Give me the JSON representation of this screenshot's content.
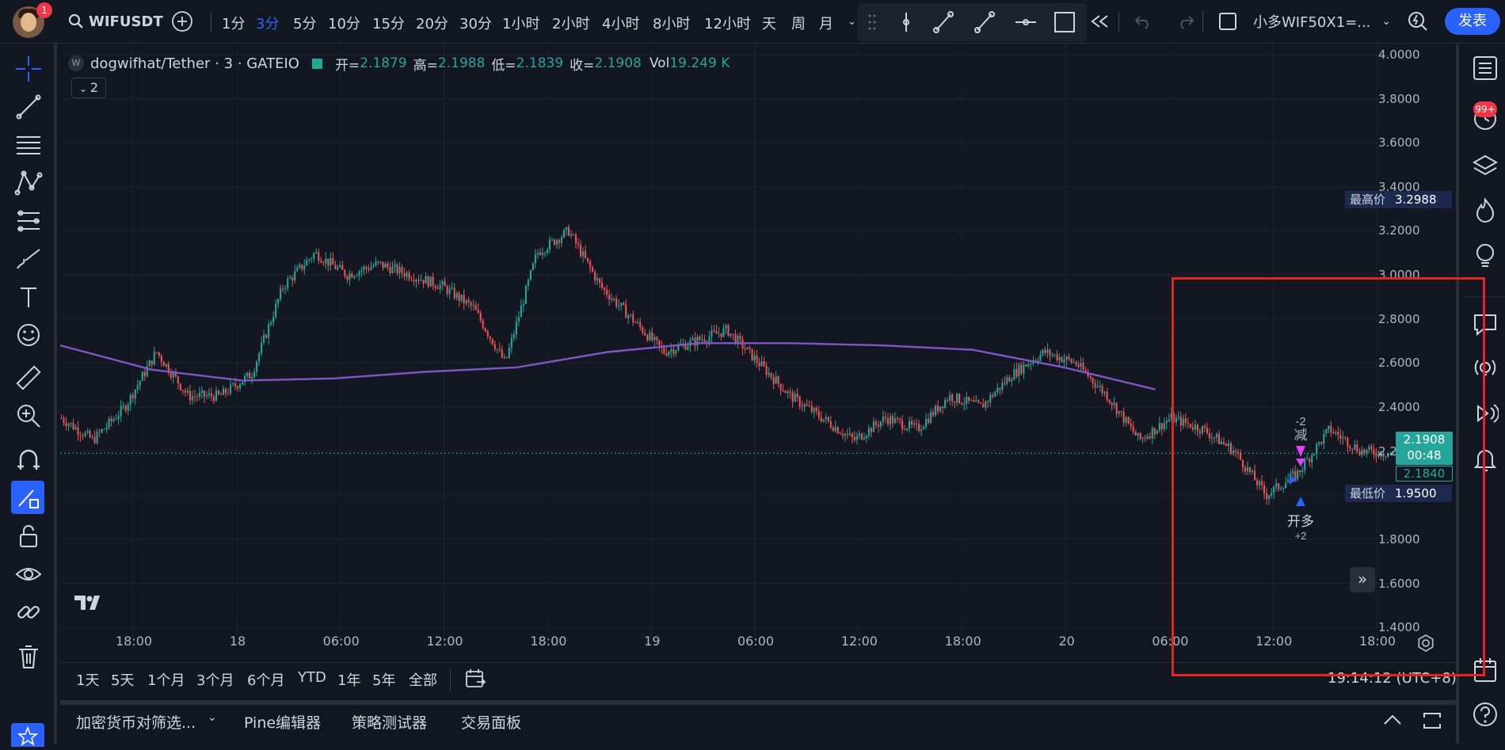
{
  "header": {
    "notification_count": "1",
    "symbol": "WIFUSDT",
    "timeframes": [
      "1分",
      "3分",
      "5分",
      "10分",
      "15分",
      "20分",
      "30分",
      "1小时",
      "2小时",
      "4小时",
      "8小时",
      "12小时",
      "天",
      "周",
      "月"
    ],
    "active_timeframe": "3分",
    "strategy": "小多WIF50X1=...",
    "publish_label": "发表"
  },
  "legend": {
    "title": "dogwifhat/Tether · 3 · GATEIO",
    "open_label": "开=",
    "open": "2.1879",
    "high_label": "高=",
    "high": "2.1988",
    "low_label": "低=",
    "low": "2.1839",
    "close_label": "收=",
    "close": "2.1908",
    "vol_label": "Vol",
    "vol": "19.249 K",
    "collapse_count": "2"
  },
  "price_axis": {
    "labels": [
      "4.0000",
      "3.8000",
      "3.6000",
      "3.4000",
      "3.2000",
      "3.0000",
      "2.8000",
      "2.6000",
      "2.4000",
      "2.2000",
      "2.0000",
      "1.8000",
      "1.6000",
      "1.4000"
    ],
    "highest_label": "最高价",
    "highest": "3.2988",
    "lowest_label": "最低价",
    "lowest": "1.9500",
    "current_price": "2.1908",
    "countdown": "00:48",
    "ma_price": "2.1840"
  },
  "time_axis": {
    "labels": [
      "18:00",
      "18",
      "06:00",
      "12:00",
      "18:00",
      "19",
      "06:00",
      "12:00",
      "18:00",
      "20",
      "06:00",
      "12:00",
      "18:00"
    ]
  },
  "trade_marks": {
    "reduce_label": "减",
    "reduce_qty": "-2",
    "open_long_label": "开多",
    "open_long_qty": "+2"
  },
  "ranges": [
    "1天",
    "5天",
    "1个月",
    "3个月",
    "6个月",
    "YTD",
    "1年",
    "5年",
    "全部"
  ],
  "clock": "19:14:12 (UTC+8)",
  "bottom_tabs": [
    "加密货币对筛选...",
    "Pine编辑器",
    "策略测试器",
    "交易面板"
  ],
  "right_badge": "99+",
  "colors": {
    "up": "#26a69a",
    "down": "#ef5350",
    "ma": "#7e57c2",
    "accent": "#2962ff",
    "highlight": "#e8231f"
  },
  "chart_data": {
    "type": "candlestick",
    "symbol": "dogwifhat/Tether",
    "exchange": "GATEIO",
    "interval": "3",
    "ylim": [
      1.3,
      4.05
    ],
    "x_ticks": [
      "18:00",
      "18",
      "06:00",
      "12:00",
      "18:00",
      "19",
      "06:00",
      "12:00",
      "18:00",
      "20",
      "06:00",
      "12:00",
      "18:00"
    ],
    "close_path": [
      2.35,
      2.25,
      2.4,
      2.65,
      2.45,
      2.45,
      2.55,
      2.95,
      3.1,
      3.0,
      3.05,
      3.0,
      2.95,
      2.85,
      2.6,
      3.1,
      3.2,
      2.95,
      2.8,
      2.65,
      2.7,
      2.75,
      2.6,
      2.45,
      2.35,
      2.25,
      2.35,
      2.3,
      2.45,
      2.4,
      2.55,
      2.65,
      2.6,
      2.45,
      2.25,
      2.35,
      2.3,
      2.2,
      2.0,
      2.1,
      2.3,
      2.2,
      2.19
    ],
    "ma_path": [
      2.68,
      2.57,
      2.52,
      2.53,
      2.56,
      2.58,
      2.65,
      2.69,
      2.69,
      2.68,
      2.66,
      2.58,
      2.48
    ],
    "ma_last": 2.184,
    "last": 2.1908,
    "high": 3.2988,
    "low": 1.95
  }
}
